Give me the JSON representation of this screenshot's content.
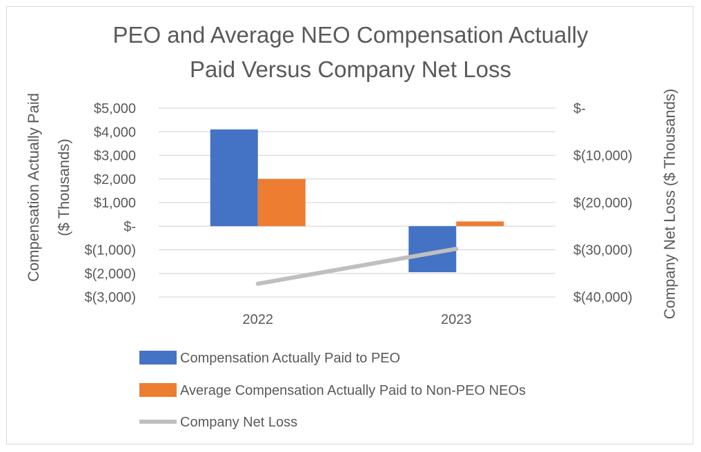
{
  "chart_data": {
    "type": "bar",
    "title_lines": [
      "PEO and Average NEO Compensation Actually",
      "Paid Versus Company Net Loss"
    ],
    "categories": [
      "2022",
      "2023"
    ],
    "series": [
      {
        "name": "Compensation Actually Paid to PEO",
        "type": "bar",
        "axis": "left",
        "color": "#4472c4",
        "values": [
          4100,
          -1950
        ]
      },
      {
        "name": "Average Compensation Actually Paid to Non-PEO NEOs",
        "type": "bar",
        "axis": "left",
        "color": "#ed7d31",
        "values": [
          2000,
          200
        ]
      },
      {
        "name": "Company Net Loss",
        "type": "line",
        "axis": "right",
        "color": "#bfbfbf",
        "values": [
          -37200,
          -29800
        ]
      }
    ],
    "y_left": {
      "label_lines": [
        "Compensation Actually Paid",
        "($ Thousands)"
      ],
      "ylim": [
        -3000,
        5000
      ],
      "ticks": [
        5000,
        4000,
        3000,
        2000,
        1000,
        0,
        -1000,
        -2000,
        -3000
      ],
      "tick_labels": [
        "$5,000",
        "$4,000",
        "$3,000",
        "$2,000",
        "$1,000",
        "$-",
        "$(1,000)",
        "$(2,000)",
        "$(3,000)"
      ]
    },
    "y_right": {
      "label": "Company Net Loss ($ Thousands)",
      "ylim": [
        -40000,
        0
      ],
      "ticks": [
        0,
        -10000,
        -20000,
        -30000,
        -40000
      ],
      "tick_labels": [
        "$-",
        "$(10,000)",
        "$(20,000)",
        "$(30,000)",
        "$(40,000)"
      ]
    },
    "grid": true,
    "legend_position": "bottom"
  }
}
